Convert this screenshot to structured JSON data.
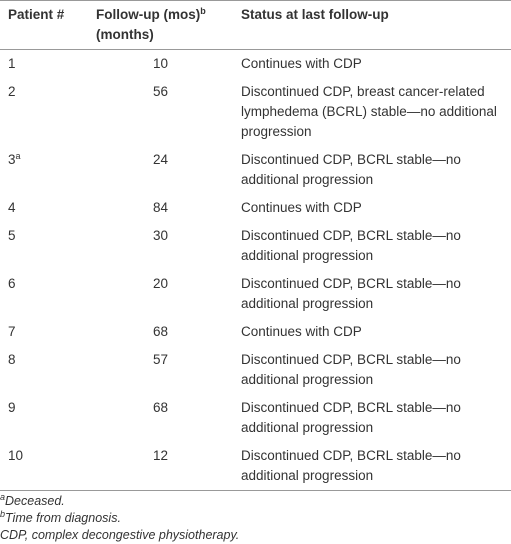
{
  "table": {
    "header": {
      "patient": "Patient #",
      "follow_up": "Follow-up (mos)",
      "follow_up_note": "b",
      "follow_up_unit": "(months)",
      "status": "Status at last follow-up"
    },
    "rows": [
      {
        "patient": 1,
        "follow_up": 10,
        "status": "Continues with CDP"
      },
      {
        "patient": 2,
        "follow_up": 56,
        "status": "Discontinued CDP, breast cancer-related lymphedema (BCRL) stable—no additional progression"
      },
      {
        "patient": 3,
        "patient_note": "a",
        "follow_up": 24,
        "status": "Discontinued CDP, BCRL stable—no additional progression"
      },
      {
        "patient": 4,
        "follow_up": 84,
        "status": "Continues with CDP"
      },
      {
        "patient": 5,
        "follow_up": 30,
        "status": "Discontinued CDP, BCRL stable—no additional progression"
      },
      {
        "patient": 6,
        "follow_up": 20,
        "status": "Discontinued CDP, BCRL stable—no additional progression"
      },
      {
        "patient": 7,
        "follow_up": 68,
        "status": "Continues with CDP"
      },
      {
        "patient": 8,
        "follow_up": 57,
        "status": "Discontinued CDP, BCRL stable—no additional progression"
      },
      {
        "patient": 9,
        "follow_up": 68,
        "status": "Discontinued CDP, BCRL stable—no additional progression"
      },
      {
        "patient": 10,
        "follow_up": 12,
        "status": "Discontinued CDP, BCRL stable—no additional progression"
      }
    ],
    "footnotes": [
      {
        "mark": "a",
        "text": "Deceased."
      },
      {
        "mark": "b",
        "text": "Time from diagnosis."
      },
      {
        "text": "CDP, complex decongestive physiotherapy."
      }
    ]
  }
}
